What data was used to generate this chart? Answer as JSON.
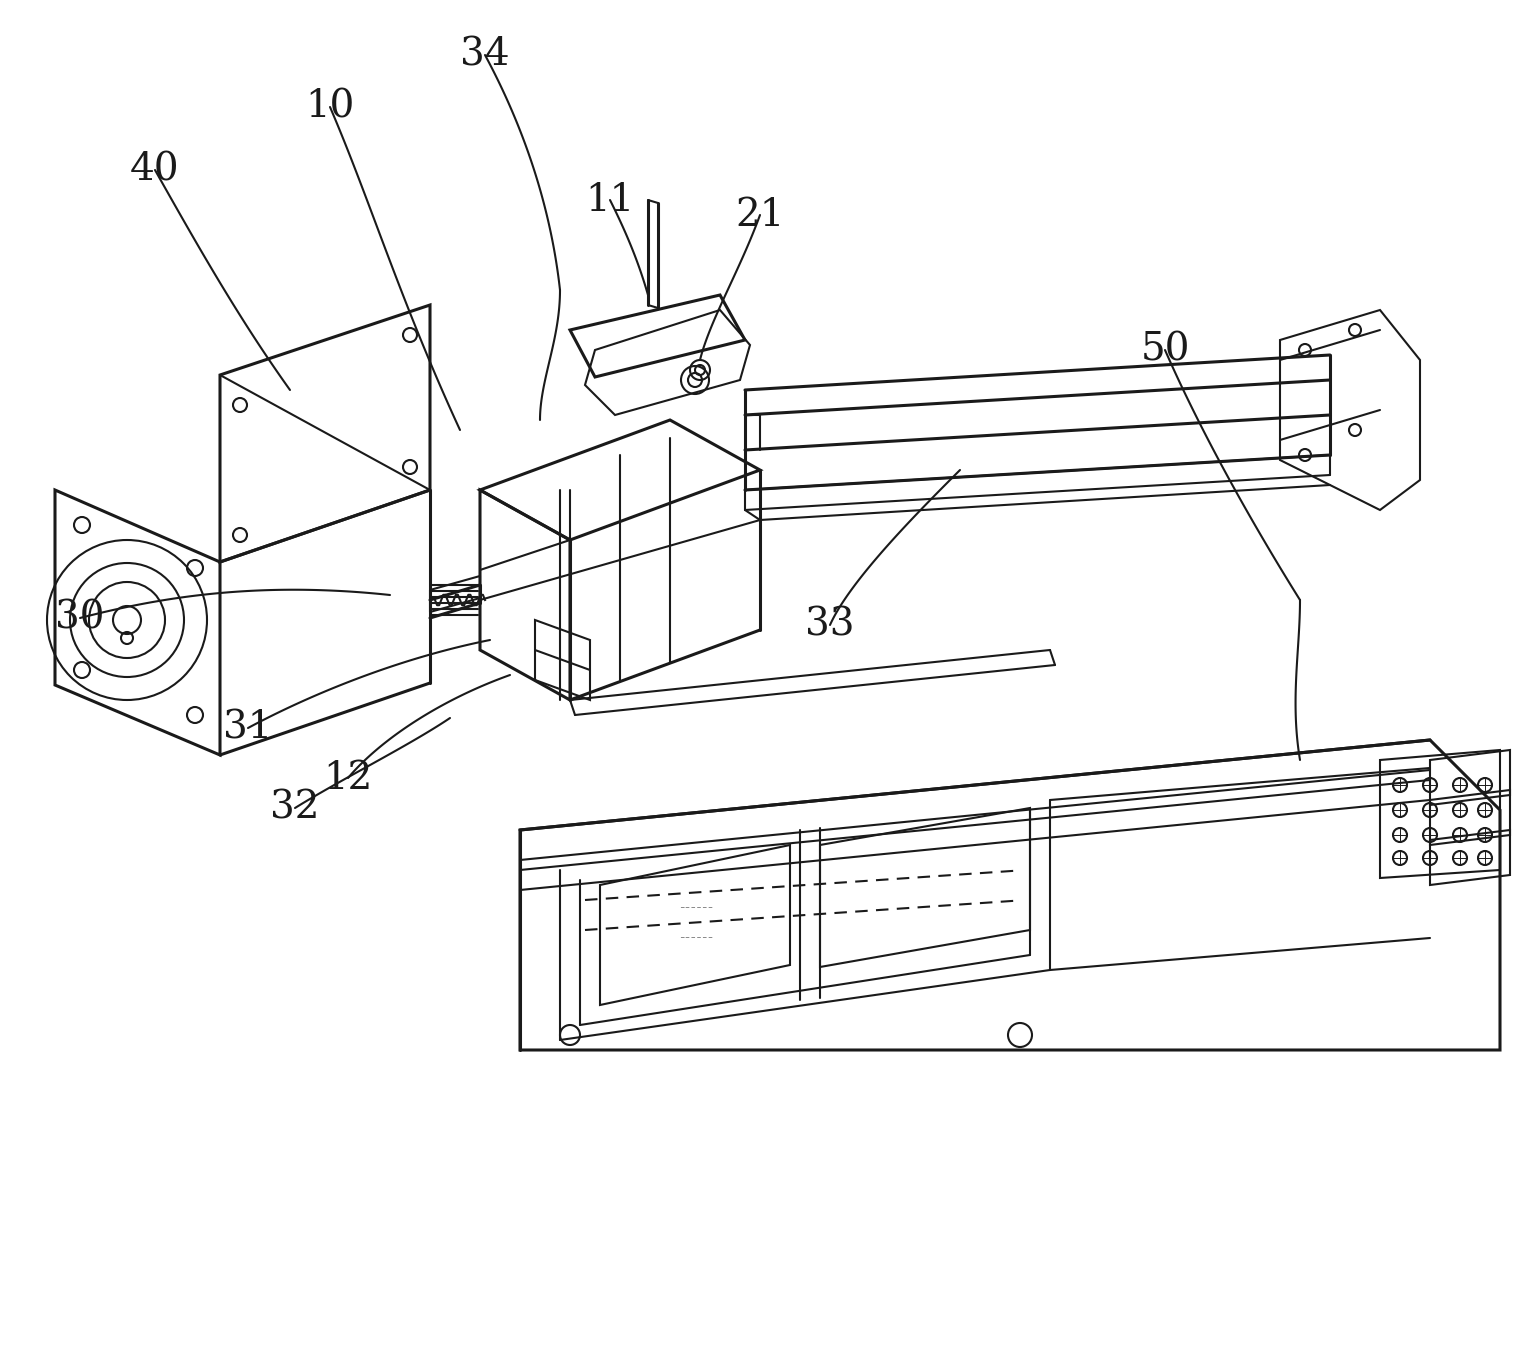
{
  "bg_color": "#ffffff",
  "line_color": "#1a1a1a",
  "lw": 1.5,
  "tlw": 2.2,
  "font_size": 28,
  "fig_width": 15.38,
  "fig_height": 13.61,
  "labels": [
    [
      "40",
      155,
      170
    ],
    [
      "10",
      330,
      107
    ],
    [
      "34",
      485,
      55
    ],
    [
      "11",
      610,
      200
    ],
    [
      "21",
      760,
      215
    ],
    [
      "50",
      1165,
      350
    ],
    [
      "30",
      80,
      618
    ],
    [
      "31",
      248,
      728
    ],
    [
      "12",
      348,
      778
    ],
    [
      "32",
      295,
      808
    ],
    [
      "33",
      830,
      625
    ]
  ]
}
